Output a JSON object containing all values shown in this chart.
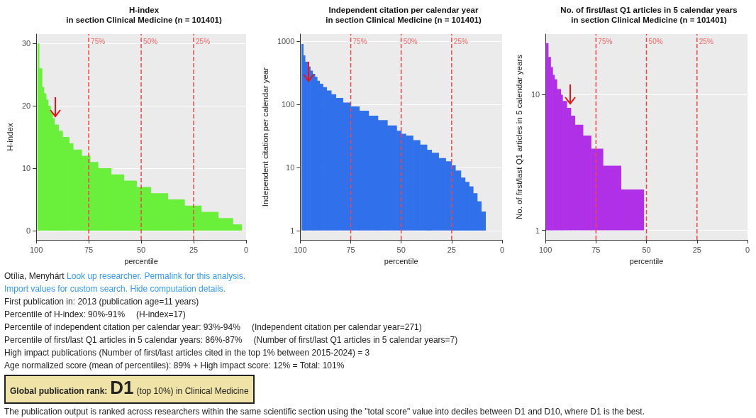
{
  "chart_data": [
    {
      "type": "histogram",
      "title": "H-index\nin section Clinical Medicine (n = 101401)",
      "xlabel": "percentile",
      "ylabel": "H-index",
      "xlim": [
        100,
        0
      ],
      "xticks": [
        100,
        75,
        50,
        25,
        0
      ],
      "ylim": [
        -1.5,
        31.5
      ],
      "yticks": [
        0,
        10,
        20,
        30
      ],
      "grid": "y",
      "bins": [
        99.4,
        98.7,
        97.3,
        96.4,
        95.4,
        94.4,
        93.3,
        92.3,
        91.4,
        89.4,
        87.5,
        84.4,
        82.5,
        78.4,
        74.4,
        70.6,
        64.4,
        58.3,
        52.3,
        45.5,
        37.4,
        29.4,
        21.4,
        13.3,
        6.4,
        2.2
      ],
      "series": [
        {
          "color": "#6aef3a",
          "values": [
            30,
            26,
            23,
            22,
            21,
            20,
            19,
            18,
            17,
            16,
            15,
            14,
            13,
            12,
            11,
            10,
            9,
            8,
            7,
            6,
            5,
            4,
            3,
            2,
            1
          ]
        }
      ],
      "ref_lines": [
        {
          "axis": "x",
          "value": 75,
          "label": "75%",
          "color": "#f04545",
          "line_style": "dashed"
        },
        {
          "axis": "x",
          "value": 50,
          "label": "50%",
          "color": "#f04545",
          "line_style": "dashed"
        },
        {
          "axis": "x",
          "value": 25,
          "label": "25%",
          "color": "#f04545",
          "line_style": "dashed"
        }
      ]
    },
    {
      "type": "histogram",
      "title": "Independent citation per calendar year\nin section Clinical Medicine (n = 101401)",
      "xlabel": "percentile",
      "ylabel": "Independent citation per calendar year",
      "log": "y",
      "xlim": [
        100,
        0
      ],
      "xticks": [
        100,
        75,
        50,
        25,
        0
      ],
      "ylim": [
        0.71,
        1290
      ],
      "yticks": [
        1,
        10,
        100,
        1000
      ],
      "grid": "y",
      "bins": [
        99.4,
        98.6,
        97.7,
        96.5,
        95.1,
        94.0,
        92.8,
        91.7,
        90.5,
        88.8,
        87.0,
        84.7,
        82.4,
        78.9,
        75.2,
        70.8,
        66.2,
        61.6,
        56.9,
        52.3,
        50.0,
        47.7,
        44.2,
        40.7,
        37.3,
        35.0,
        31.5,
        28.0,
        25.1,
        23.2,
        20.5,
        18.4,
        16.4,
        14.4,
        12.4,
        10.4,
        8.3
      ],
      "series": [
        {
          "color": "#3070ea",
          "values": [
            896,
            593,
            469,
            396,
            341,
            303,
            271,
            235,
            211,
            186,
            165,
            144,
            126,
            106,
            92,
            79,
            66,
            56,
            46,
            38,
            34,
            32,
            27,
            23,
            19,
            17,
            14,
            12.5,
            10.8,
            8.9,
            6.9,
            5.9,
            5,
            3.9,
            2.9,
            2
          ]
        }
      ],
      "ref_lines": [
        {
          "axis": "x",
          "value": 75,
          "label": "75%",
          "color": "#f04545",
          "line_style": "dashed"
        },
        {
          "axis": "x",
          "value": 50,
          "label": "50%",
          "color": "#f04545",
          "line_style": "dashed"
        },
        {
          "axis": "x",
          "value": 25,
          "label": "25%",
          "color": "#f04545",
          "line_style": "dashed"
        }
      ]
    },
    {
      "type": "histogram",
      "title": "No. of first/last Q1 articles in 5 calendar years\nin section Clinical Medicine (n = 101401)",
      "xlabel": "percentile",
      "ylabel": "No. of first/last Q1 articles in 5 calendar years",
      "log": "y",
      "xlim": [
        100,
        0
      ],
      "xticks": [
        100,
        75,
        50,
        25,
        0
      ],
      "ylim": [
        0.85,
        28
      ],
      "yticks": [
        1,
        10
      ],
      "grid": "y",
      "bins": [
        99.8,
        98.7,
        97.5,
        96.5,
        95.6,
        94.4,
        92.5,
        91.6,
        89.5,
        87.5,
        85.5,
        81.5,
        77.5,
        71.6,
        62.7,
        51.4
      ],
      "series": [
        {
          "color": "#b030e8",
          "values": [
            24,
            19,
            16,
            14,
            13,
            11,
            10,
            9,
            8,
            7,
            6,
            5,
            4,
            3,
            2
          ]
        }
      ],
      "ref_lines": [
        {
          "axis": "x",
          "value": 75,
          "label": "75%",
          "color": "#f04545",
          "line_style": "dashed"
        },
        {
          "axis": "x",
          "value": 50,
          "label": "50%",
          "color": "#f04545",
          "line_style": "dashed"
        },
        {
          "axis": "x",
          "value": 25,
          "label": "25%",
          "color": "#f04545",
          "line_style": "dashed"
        }
      ]
    },
    {
      "type": "other",
      "annotations": [
        "Otília, Menyhárt",
        "Look up researcher. Permalink for this analysis.",
        "Import values for custom search. Hide computation details.",
        "First publication in: 2013 (publication age=11 years)",
        "Percentile of H-index: 90%-91%",
        "(H-index=17)",
        "Percentile of independent citation per calendar year: 93%-94%",
        "(Independent citation per calendar year=271)",
        "Percentile of first/last Q1 articles in 5 calendar years: 86%-87%",
        "(Number of first/last Q1 articles in 5 calendar years=7)",
        "High impact publications (Number of first/last articles cited in the top 1% between 2015-2024) = 3",
        "Age normalized score (mean of percentiles): 89% + High impact score: 12% = Total: 101%",
        "Global publication rank:",
        "D1",
        "(top 10%) in Clinical Medicine",
        "The publication output is ranked across researchers within the same scientific section using the \"total score\" value into deciles between D1 and D10, where D1 is the best."
      ]
    }
  ]
}
